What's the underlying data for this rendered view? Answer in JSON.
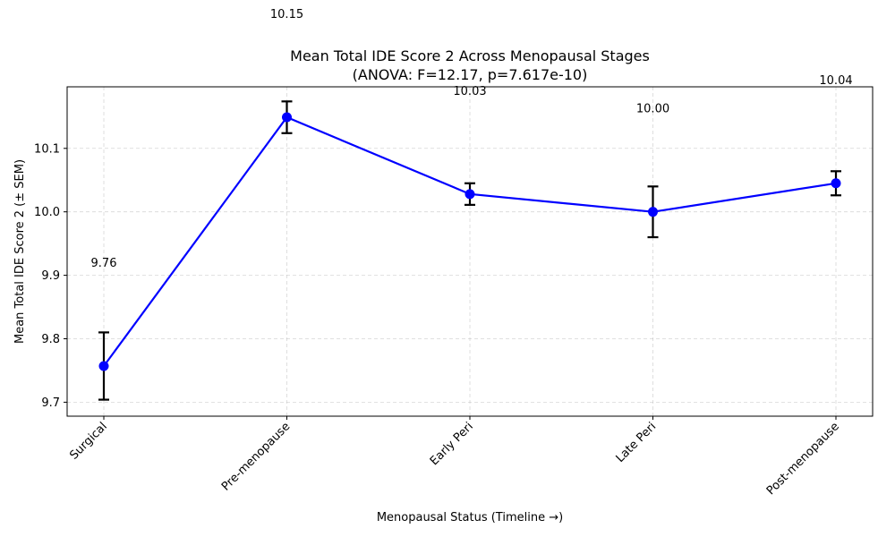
{
  "chart_data": {
    "type": "line",
    "title_line1": "Mean Total IDE Score 2 Across Menopausal Stages",
    "title_line2": "(ANOVA: F=12.17, p=7.617e-10)",
    "xlabel": "Menopausal Status (Timeline →)",
    "ylabel": "Mean Total IDE Score 2 (± SEM)",
    "categories": [
      "Surgical",
      "Pre-menopause",
      "Early Peri",
      "Late Peri",
      "Post-menopause"
    ],
    "values": [
      9.757,
      10.149,
      10.028,
      10.0,
      10.045
    ],
    "errors": [
      0.053,
      0.025,
      0.017,
      0.04,
      0.019
    ],
    "data_labels": [
      "9.76",
      "10.15",
      "10.03",
      "10.00",
      "10.04"
    ],
    "ylim": [
      9.678,
      10.197
    ],
    "yticks": [
      9.7,
      9.8,
      9.9,
      10.0,
      10.1
    ],
    "ytick_labels": [
      "9.7",
      "9.8",
      "9.9",
      "10.0",
      "10.1"
    ],
    "grid": true,
    "line_color": "#0000ff",
    "marker_color": "#0000ff",
    "errorbar_color": "#000000"
  }
}
